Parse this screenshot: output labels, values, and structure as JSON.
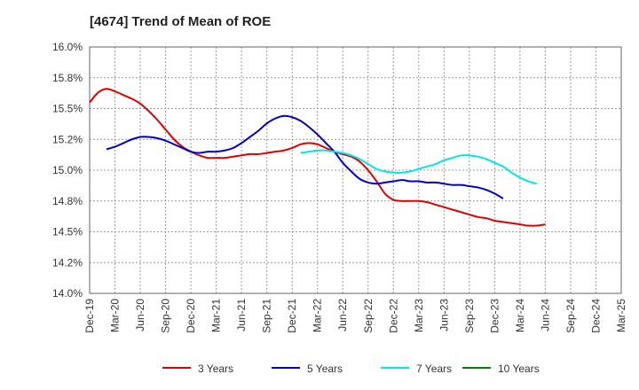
{
  "chart_data": {
    "type": "line",
    "title": "[4674]  Trend of Mean of ROE",
    "xlabel": "",
    "ylabel": "",
    "ylim": [
      14.0,
      16.0
    ],
    "y_ticks": [
      "16.0%",
      "15.8%",
      "15.5%",
      "15.2%",
      "15.0%",
      "14.8%",
      "14.5%",
      "14.2%",
      "14.0%"
    ],
    "x_tick_labels": [
      "Dec-19",
      "Mar-20",
      "Jun-20",
      "Sep-20",
      "Dec-20",
      "Mar-21",
      "Jun-21",
      "Sep-21",
      "Dec-21",
      "Mar-22",
      "Jun-22",
      "Sep-22",
      "Dec-22",
      "Mar-23",
      "Jun-23",
      "Sep-23",
      "Dec-23",
      "Mar-24",
      "Jun-24",
      "Sep-24",
      "Dec-24",
      "Mar-25"
    ],
    "grid": true,
    "legend_position": "bottom",
    "series": [
      {
        "name": "3 Years",
        "color": "#e00000",
        "x_start_index": 0,
        "values": [
          15.55,
          15.63,
          15.66,
          15.64,
          15.61,
          15.58,
          15.54,
          15.48,
          15.41,
          15.33,
          15.25,
          15.19,
          15.15,
          15.12,
          15.1,
          15.1,
          15.1,
          15.11,
          15.12,
          15.13,
          15.13,
          15.14,
          15.15,
          15.16,
          15.18,
          15.21,
          15.22,
          15.21,
          15.18,
          15.15,
          15.13,
          15.11,
          15.07,
          15.0,
          14.91,
          14.81,
          14.76,
          14.75,
          14.75,
          14.75,
          14.74,
          14.72,
          14.7,
          14.68,
          14.66,
          14.64,
          14.62,
          14.61,
          14.59,
          14.58,
          14.57,
          14.56,
          14.55,
          14.55,
          14.56
        ]
      },
      {
        "name": "5 Years",
        "color": "#0000cc",
        "x_start_index": 2,
        "values": [
          15.17,
          15.19,
          15.22,
          15.25,
          15.27,
          15.27,
          15.26,
          15.24,
          15.21,
          15.18,
          15.15,
          15.14,
          15.15,
          15.15,
          15.16,
          15.18,
          15.22,
          15.27,
          15.32,
          15.38,
          15.42,
          15.44,
          15.43,
          15.4,
          15.35,
          15.29,
          15.22,
          15.15,
          15.06,
          14.99,
          14.93,
          14.9,
          14.89,
          14.9,
          14.91,
          14.92,
          14.91,
          14.91,
          14.9,
          14.9,
          14.89,
          14.88,
          14.88,
          14.87,
          14.86,
          14.84,
          14.81,
          14.77
        ]
      },
      {
        "name": "7 Years",
        "color": "#00e5e5",
        "x_start_index": 25,
        "values": [
          15.14,
          15.15,
          15.16,
          15.16,
          15.15,
          15.14,
          15.12,
          15.09,
          15.05,
          15.01,
          14.99,
          14.98,
          14.98,
          14.99,
          15.01,
          15.03,
          15.05,
          15.08,
          15.1,
          15.12,
          15.12,
          15.11,
          15.09,
          15.06,
          15.03,
          14.98,
          14.94,
          14.91,
          14.89
        ]
      },
      {
        "name": "10 Years",
        "color": "#008000",
        "x_start_index": 0,
        "values": []
      }
    ]
  }
}
